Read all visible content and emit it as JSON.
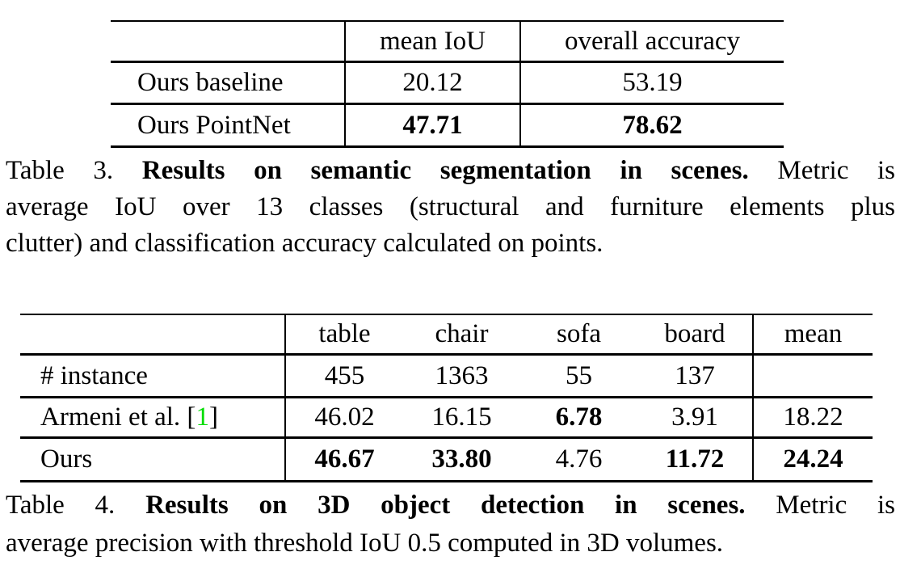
{
  "colors": {
    "background": "#ffffff",
    "text": "#000000",
    "rule": "#000000",
    "citation_green": "#00dd00"
  },
  "table3": {
    "col_headers": [
      "mean IoU",
      "overall accuracy"
    ],
    "rows": [
      {
        "label": "Ours baseline",
        "mean_iou": {
          "text": "20.12",
          "bold": false
        },
        "overall_accuracy": {
          "text": "53.19",
          "bold": false
        }
      },
      {
        "label": "Ours PointNet",
        "mean_iou": {
          "text": "47.71",
          "bold": true
        },
        "overall_accuracy": {
          "text": "78.62",
          "bold": true
        }
      }
    ],
    "caption": {
      "line1_prefix": "Table 3. ",
      "line1_bold": "Results on semantic segmentation in scenes.",
      "line1_suffix": " Metric is",
      "line2": "average IoU over 13 classes (structural and furniture elements plus",
      "line3": "clutter) and classification accuracy calculated on points."
    }
  },
  "table4": {
    "col_headers": [
      "table",
      "chair",
      "sofa",
      "board",
      "mean"
    ],
    "rows": [
      {
        "label": "# instance",
        "cells": [
          {
            "text": "455",
            "bold": false
          },
          {
            "text": "1363",
            "bold": false
          },
          {
            "text": "55",
            "bold": false
          },
          {
            "text": "137",
            "bold": false
          },
          {
            "text": "",
            "bold": false
          }
        ]
      },
      {
        "label_prefix": "Armeni et al. [",
        "citation": "1",
        "label_suffix": "]",
        "cells": [
          {
            "text": "46.02",
            "bold": false
          },
          {
            "text": "16.15",
            "bold": false
          },
          {
            "text": "6.78",
            "bold": true
          },
          {
            "text": "3.91",
            "bold": false
          },
          {
            "text": "18.22",
            "bold": false
          }
        ]
      },
      {
        "label": "Ours",
        "cells": [
          {
            "text": "46.67",
            "bold": true
          },
          {
            "text": "33.80",
            "bold": true
          },
          {
            "text": "4.76",
            "bold": false
          },
          {
            "text": "11.72",
            "bold": true
          },
          {
            "text": "24.24",
            "bold": true
          }
        ]
      }
    ],
    "caption": {
      "line1_prefix": "Table 4. ",
      "line1_bold": "Results on 3D object detection in scenes.",
      "line1_suffix": " Metric is",
      "line2": "average precision with threshold IoU 0.5 computed in 3D volumes."
    }
  }
}
